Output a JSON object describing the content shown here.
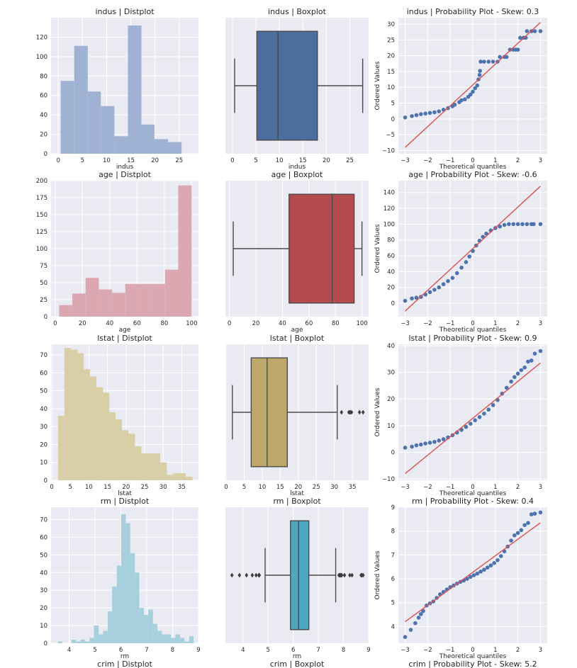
{
  "chart_data": [
    {
      "type": "bar",
      "title": "indus | Distplot",
      "xlabel": "indus",
      "ylabel": "",
      "xlim": [
        -1.5,
        29
      ],
      "ylim": [
        0,
        140
      ],
      "xticks": [
        0,
        5,
        10,
        15,
        20,
        25
      ],
      "yticks": [
        0,
        20,
        40,
        60,
        80,
        100,
        120
      ],
      "bins": [
        [
          0.5,
          3.3,
          75
        ],
        [
          3.3,
          6.1,
          111
        ],
        [
          6.1,
          8.8,
          64
        ],
        [
          8.8,
          11.6,
          49
        ],
        [
          11.6,
          14.4,
          18
        ],
        [
          14.4,
          17.2,
          132
        ],
        [
          17.2,
          19.9,
          30
        ],
        [
          19.9,
          22.7,
          15
        ],
        [
          22.7,
          25.5,
          12
        ],
        [
          25.5,
          28.3,
          0
        ]
      ],
      "color": "#9fb2d3"
    },
    {
      "type": "box",
      "title": "indus | Boxplot",
      "xlabel": "indus",
      "xlim": [
        -1.5,
        29
      ],
      "xticks": [
        0,
        5,
        10,
        15,
        20,
        25
      ],
      "whisker_low": 0.46,
      "q1": 5.19,
      "median": 9.69,
      "q3": 18.1,
      "whisker_high": 27.74,
      "outliers": [],
      "color": "#4c6e9e"
    },
    {
      "type": "scatter",
      "title": "indus | Probability Plot - Skew: 0.3",
      "xlabel": "Theoretical quantiles",
      "ylabel": "Ordered Values",
      "xlim": [
        -3.3,
        3.3
      ],
      "ylim": [
        -11,
        32
      ],
      "xticks": [
        -3,
        -2,
        -1,
        0,
        1,
        2,
        3
      ],
      "yticks": [
        -10,
        -5,
        0,
        5,
        10,
        15,
        20,
        25,
        30
      ],
      "fit_line": [
        [
          -3,
          -9
        ],
        [
          3,
          30.5
        ]
      ],
      "color": "#4c72b0",
      "points": [
        [
          -3,
          0.46
        ],
        [
          -2.7,
          0.9
        ],
        [
          -2.5,
          1.2
        ],
        [
          -2.3,
          1.5
        ],
        [
          -2.1,
          1.7
        ],
        [
          -1.9,
          1.9
        ],
        [
          -1.7,
          2.1
        ],
        [
          -1.5,
          2.4
        ],
        [
          -1.3,
          2.9
        ],
        [
          -1.1,
          3.4
        ],
        [
          -0.9,
          4.0
        ],
        [
          -0.8,
          4.5
        ],
        [
          -0.6,
          5.3
        ],
        [
          -0.5,
          5.9
        ],
        [
          -0.35,
          6.2
        ],
        [
          -0.2,
          7.0
        ],
        [
          -0.1,
          7.7
        ],
        [
          0,
          8.6
        ],
        [
          0.1,
          9.7
        ],
        [
          0.2,
          10.6
        ],
        [
          0.25,
          12.5
        ],
        [
          0.3,
          13.9
        ],
        [
          0.32,
          15.2
        ],
        [
          0.35,
          18.1
        ],
        [
          0.5,
          18.1
        ],
        [
          0.7,
          18.1
        ],
        [
          0.9,
          18.1
        ],
        [
          1.1,
          18.1
        ],
        [
          1.2,
          19.6
        ],
        [
          1.4,
          19.6
        ],
        [
          1.5,
          19.6
        ],
        [
          1.65,
          21.9
        ],
        [
          1.8,
          21.9
        ],
        [
          1.9,
          21.9
        ],
        [
          2.0,
          21.9
        ],
        [
          2.1,
          25.65
        ],
        [
          2.25,
          25.65
        ],
        [
          2.35,
          25.65
        ],
        [
          2.4,
          27.74
        ],
        [
          2.6,
          27.74
        ],
        [
          2.75,
          27.74
        ],
        [
          3.0,
          27.74
        ]
      ]
    },
    {
      "type": "bar",
      "title": "age | Distplot",
      "xlabel": "age",
      "ylabel": "",
      "xlim": [
        -3,
        105
      ],
      "ylim": [
        0,
        200
      ],
      "xticks": [
        0,
        20,
        40,
        60,
        80,
        100
      ],
      "yticks": [
        0,
        25,
        50,
        75,
        100,
        125,
        150,
        175,
        200
      ],
      "bins": [
        [
          2.9,
          12.6,
          17
        ],
        [
          12.6,
          22.3,
          34
        ],
        [
          22.3,
          32.0,
          57
        ],
        [
          32.0,
          41.7,
          40
        ],
        [
          41.7,
          51.4,
          35
        ],
        [
          51.4,
          61.1,
          48
        ],
        [
          61.1,
          70.8,
          48
        ],
        [
          70.8,
          80.5,
          48
        ],
        [
          80.5,
          90.2,
          69
        ],
        [
          90.2,
          100,
          193
        ]
      ],
      "color": "#dba8b1"
    },
    {
      "type": "box",
      "title": "age | Boxplot",
      "xlabel": "age",
      "xlim": [
        -3,
        105
      ],
      "xticks": [
        0,
        20,
        40,
        60,
        80,
        100
      ],
      "whisker_low": 2.9,
      "q1": 45.0,
      "median": 77.5,
      "q3": 94.1,
      "whisker_high": 100,
      "outliers": [],
      "color": "#b34a4d"
    },
    {
      "type": "scatter",
      "title": "age | Probability Plot - Skew: -0.6",
      "xlabel": "Theoretical quantiles",
      "ylabel": "Ordered Values",
      "xlim": [
        -3.3,
        3.3
      ],
      "ylim": [
        -17,
        155
      ],
      "xticks": [
        -3,
        -2,
        -1,
        0,
        1,
        2,
        3
      ],
      "yticks": [
        0,
        20,
        40,
        60,
        80,
        100,
        120,
        140
      ],
      "fit_line": [
        [
          -3,
          -10
        ],
        [
          3,
          148
        ]
      ],
      "color": "#4c72b0",
      "points": [
        [
          -3,
          3
        ],
        [
          -2.7,
          6
        ],
        [
          -2.5,
          7
        ],
        [
          -2.3,
          8
        ],
        [
          -2.1,
          11
        ],
        [
          -1.9,
          14
        ],
        [
          -1.7,
          17
        ],
        [
          -1.5,
          20
        ],
        [
          -1.3,
          24
        ],
        [
          -1.1,
          28
        ],
        [
          -0.9,
          32
        ],
        [
          -0.7,
          38
        ],
        [
          -0.5,
          45
        ],
        [
          -0.3,
          52
        ],
        [
          -0.15,
          59
        ],
        [
          0,
          66
        ],
        [
          0.15,
          73
        ],
        [
          0.3,
          79
        ],
        [
          0.45,
          84
        ],
        [
          0.6,
          88
        ],
        [
          0.8,
          92
        ],
        [
          1.0,
          95
        ],
        [
          1.2,
          97
        ],
        [
          1.4,
          99
        ],
        [
          1.6,
          100
        ],
        [
          1.8,
          100
        ],
        [
          2.0,
          100
        ],
        [
          2.2,
          100
        ],
        [
          2.4,
          100
        ],
        [
          2.6,
          100
        ],
        [
          2.7,
          100
        ],
        [
          3.0,
          100
        ]
      ]
    },
    {
      "type": "bar",
      "title": "lstat | Distplot",
      "xlabel": "lstat",
      "ylabel": "",
      "xlim": [
        -0.2,
        39.5
      ],
      "ylim": [
        0,
        76
      ],
      "xticks": [
        0,
        5,
        10,
        15,
        20,
        25,
        30,
        35
      ],
      "yticks": [
        0,
        10,
        20,
        30,
        40,
        50,
        60,
        70
      ],
      "bins": [
        [
          1.7,
          3.4,
          36
        ],
        [
          3.4,
          5.2,
          74
        ],
        [
          5.2,
          6.9,
          73
        ],
        [
          6.9,
          8.6,
          71
        ],
        [
          8.6,
          10.3,
          62
        ],
        [
          10.3,
          12.0,
          58
        ],
        [
          12.0,
          13.8,
          52
        ],
        [
          13.8,
          15.5,
          49
        ],
        [
          15.5,
          17.2,
          38
        ],
        [
          17.2,
          18.9,
          34
        ],
        [
          18.9,
          20.6,
          28
        ],
        [
          20.6,
          22.4,
          26
        ],
        [
          22.4,
          24.1,
          19
        ],
        [
          24.1,
          25.8,
          15
        ],
        [
          25.8,
          27.5,
          15
        ],
        [
          27.5,
          29.2,
          15
        ],
        [
          29.2,
          31.0,
          10
        ],
        [
          31.0,
          32.7,
          3
        ],
        [
          32.7,
          34.4,
          4
        ],
        [
          34.4,
          36.1,
          4
        ],
        [
          36.1,
          37.9,
          2
        ]
      ],
      "color": "#d9cfa7"
    },
    {
      "type": "box",
      "title": "lstat | Boxplot",
      "xlabel": "lstat",
      "xlim": [
        -0.2,
        39.5
      ],
      "xticks": [
        0,
        5,
        10,
        15,
        20,
        25,
        30,
        35
      ],
      "whisker_low": 1.73,
      "q1": 6.95,
      "median": 11.36,
      "q3": 16.96,
      "whisker_high": 30.81,
      "outliers": [
        31.99,
        34.02,
        34.37,
        34.41,
        34.77,
        36.98,
        37.97
      ],
      "color": "#bda869"
    },
    {
      "type": "scatter",
      "title": "lstat | Probability Plot - Skew: 0.9",
      "xlabel": "Theoretical quantiles",
      "ylabel": "Ordered Values",
      "xlim": [
        -3.3,
        3.3
      ],
      "ylim": [
        -10.5,
        40.5
      ],
      "xticks": [
        -3,
        -2,
        -1,
        0,
        1,
        2,
        3
      ],
      "yticks": [
        -10,
        0,
        10,
        20,
        30,
        40
      ],
      "fit_line": [
        [
          -3,
          -8
        ],
        [
          3,
          33.5
        ]
      ],
      "color": "#4c72b0",
      "points": [
        [
          -3,
          1.73
        ],
        [
          -2.7,
          2.1
        ],
        [
          -2.5,
          2.6
        ],
        [
          -2.3,
          2.9
        ],
        [
          -2.1,
          3.3
        ],
        [
          -1.9,
          3.6
        ],
        [
          -1.7,
          3.9
        ],
        [
          -1.5,
          4.4
        ],
        [
          -1.3,
          4.9
        ],
        [
          -1.1,
          5.6
        ],
        [
          -0.9,
          6.4
        ],
        [
          -0.7,
          7.4
        ],
        [
          -0.5,
          8.4
        ],
        [
          -0.3,
          9.5
        ],
        [
          -0.1,
          10.7
        ],
        [
          0.1,
          12.0
        ],
        [
          0.3,
          13.2
        ],
        [
          0.5,
          14.5
        ],
        [
          0.7,
          16.0
        ],
        [
          0.9,
          17.7
        ],
        [
          1.1,
          19.6
        ],
        [
          1.3,
          22.0
        ],
        [
          1.5,
          24.2
        ],
        [
          1.7,
          26.5
        ],
        [
          1.85,
          28.2
        ],
        [
          2.0,
          29.5
        ],
        [
          2.15,
          30.8
        ],
        [
          2.3,
          31.8
        ],
        [
          2.45,
          34.0
        ],
        [
          2.6,
          34.4
        ],
        [
          2.75,
          37.0
        ],
        [
          3.0,
          37.97
        ]
      ]
    },
    {
      "type": "bar",
      "title": "rm | Distplot",
      "xlabel": "rm",
      "ylabel": "",
      "xlim": [
        3.3,
        9.0
      ],
      "ylim": [
        0,
        77
      ],
      "xticks": [
        4,
        5,
        6,
        7,
        8,
        9
      ],
      "yticks": [
        0,
        10,
        20,
        30,
        40,
        50,
        60,
        70
      ],
      "bins": [
        [
          3.56,
          3.74,
          1
        ],
        [
          3.74,
          3.91,
          0
        ],
        [
          3.91,
          4.09,
          0
        ],
        [
          4.09,
          4.26,
          2
        ],
        [
          4.26,
          4.44,
          1
        ],
        [
          4.44,
          4.61,
          2
        ],
        [
          4.61,
          4.79,
          1
        ],
        [
          4.79,
          4.96,
          3
        ],
        [
          4.96,
          5.14,
          10
        ],
        [
          5.14,
          5.31,
          5
        ],
        [
          5.31,
          5.49,
          7
        ],
        [
          5.49,
          5.66,
          18
        ],
        [
          5.66,
          5.84,
          32
        ],
        [
          5.84,
          6.01,
          44
        ],
        [
          6.01,
          6.19,
          73
        ],
        [
          6.19,
          6.36,
          68
        ],
        [
          6.36,
          6.54,
          51
        ],
        [
          6.54,
          6.71,
          40
        ],
        [
          6.71,
          6.89,
          20
        ],
        [
          6.89,
          7.06,
          16
        ],
        [
          7.06,
          7.24,
          19
        ],
        [
          7.24,
          7.41,
          11
        ],
        [
          7.41,
          7.59,
          7
        ],
        [
          7.59,
          7.76,
          5
        ],
        [
          7.76,
          7.94,
          5
        ],
        [
          7.94,
          8.11,
          3
        ],
        [
          8.11,
          8.29,
          5
        ],
        [
          8.29,
          8.46,
          3
        ],
        [
          8.46,
          8.64,
          1
        ],
        [
          8.64,
          8.81,
          4
        ]
      ],
      "color": "#a6d0de"
    },
    {
      "type": "box",
      "title": "rm | Boxplot",
      "xlabel": "rm",
      "xlim": [
        3.3,
        9.0
      ],
      "xticks": [
        4,
        5,
        6,
        7,
        8,
        9
      ],
      "whisker_low": 4.88,
      "q1": 5.89,
      "median": 6.21,
      "q3": 6.62,
      "whisker_high": 7.69,
      "outliers": [
        3.56,
        3.86,
        4.14,
        4.37,
        4.52,
        4.63,
        4.65,
        7.82,
        7.85,
        7.88,
        7.92,
        7.93,
        8.04,
        8.25,
        8.34,
        8.7,
        8.73,
        8.78
      ],
      "color": "#4fa6bf"
    },
    {
      "type": "scatter",
      "title": "rm | Probability Plot - Skew: 0.4",
      "xlabel": "Theoretical quantiles",
      "ylabel": "Ordered Values",
      "xlim": [
        -3.3,
        3.3
      ],
      "ylim": [
        3.3,
        9.0
      ],
      "xticks": [
        -3,
        -2,
        -1,
        0,
        1,
        2,
        3
      ],
      "yticks": [
        4,
        5,
        6,
        7,
        8,
        9
      ],
      "fit_line": [
        [
          -3,
          4.2
        ],
        [
          3,
          8.35
        ]
      ],
      "color": "#4c72b0",
      "points": [
        [
          -3,
          3.56
        ],
        [
          -2.75,
          3.86
        ],
        [
          -2.55,
          4.14
        ],
        [
          -2.4,
          4.37
        ],
        [
          -2.3,
          4.52
        ],
        [
          -2.2,
          4.65
        ],
        [
          -2.05,
          4.88
        ],
        [
          -1.9,
          4.97
        ],
        [
          -1.75,
          5.05
        ],
        [
          -1.6,
          5.2
        ],
        [
          -1.45,
          5.35
        ],
        [
          -1.3,
          5.45
        ],
        [
          -1.15,
          5.55
        ],
        [
          -1.0,
          5.65
        ],
        [
          -0.85,
          5.72
        ],
        [
          -0.7,
          5.8
        ],
        [
          -0.55,
          5.87
        ],
        [
          -0.4,
          5.93
        ],
        [
          -0.25,
          6.0
        ],
        [
          -0.1,
          6.08
        ],
        [
          0.05,
          6.15
        ],
        [
          0.2,
          6.22
        ],
        [
          0.35,
          6.3
        ],
        [
          0.5,
          6.38
        ],
        [
          0.65,
          6.47
        ],
        [
          0.8,
          6.56
        ],
        [
          0.95,
          6.66
        ],
        [
          1.1,
          6.78
        ],
        [
          1.25,
          6.95
        ],
        [
          1.4,
          7.15
        ],
        [
          1.55,
          7.35
        ],
        [
          1.7,
          7.6
        ],
        [
          1.85,
          7.82
        ],
        [
          2.0,
          7.92
        ],
        [
          2.15,
          8.04
        ],
        [
          2.3,
          8.25
        ],
        [
          2.45,
          8.34
        ],
        [
          2.6,
          8.7
        ],
        [
          2.75,
          8.73
        ],
        [
          3.0,
          8.78
        ]
      ]
    }
  ],
  "truncated_titles": [
    "crim | Distplot",
    "crim | Boxplot",
    "crim | Probability Plot - Skew: 5.2"
  ]
}
